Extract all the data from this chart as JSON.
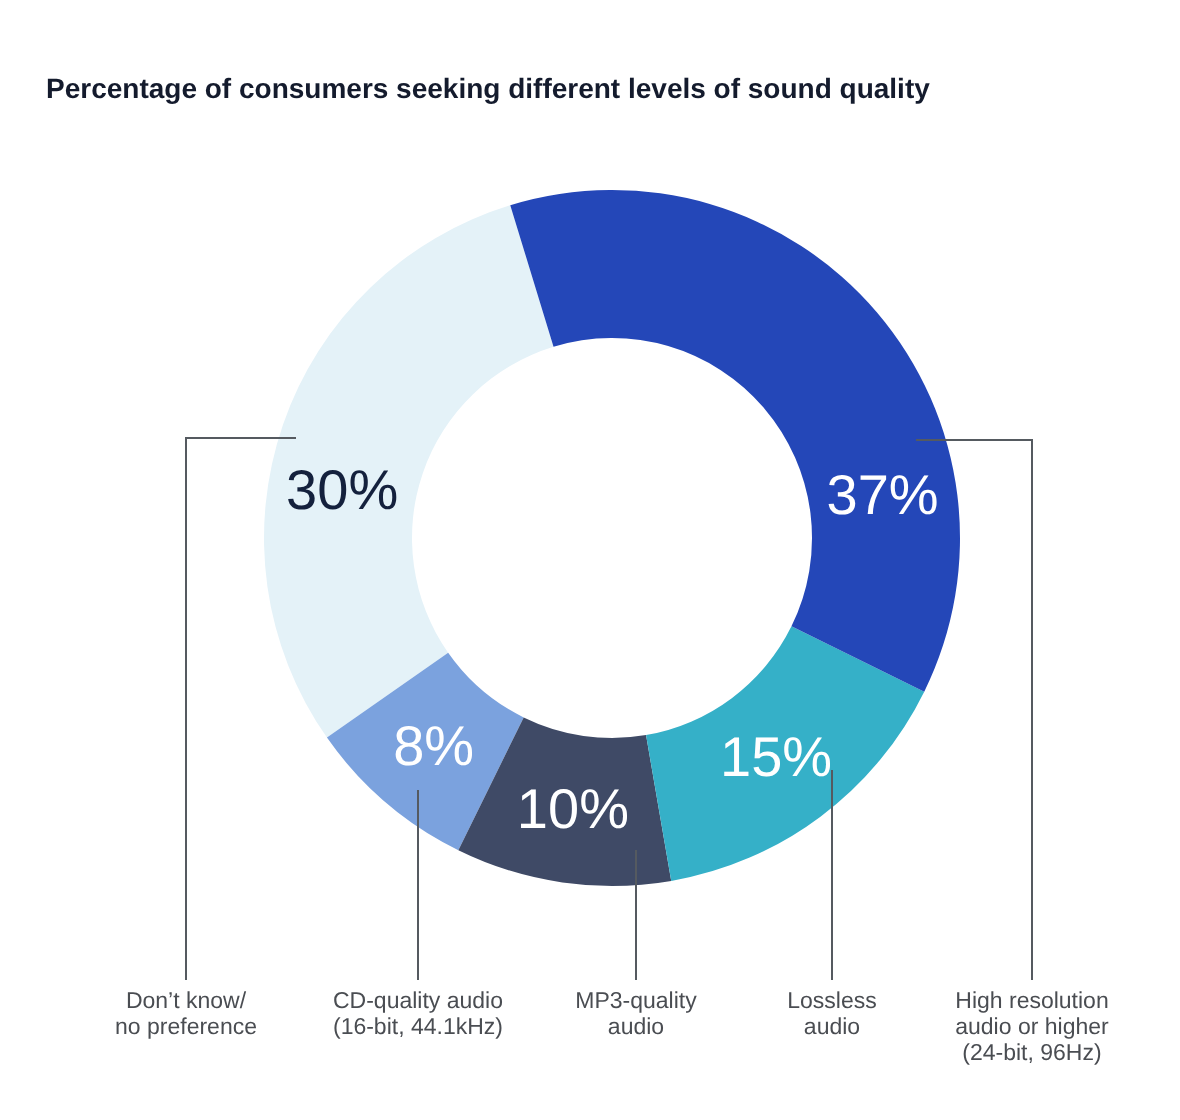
{
  "chart_data": {
    "type": "donut",
    "title": "Percentage of consumers seeking different levels of sound quality",
    "categories": [
      "Don’t know/ no preference",
      "CD-quality audio (16-bit, 44.1kHz)",
      "MP3-quality audio",
      "Lossless audio",
      "High resolution audio or higher (24-bit, 96Hz)"
    ],
    "values": [
      30,
      8,
      10,
      15,
      37
    ],
    "colors": [
      "#e4f2f8",
      "#7ba2de",
      "#3f4a66",
      "#35b0c8",
      "#2447b8"
    ],
    "value_labels": [
      "30%",
      "8%",
      "10%",
      "15%",
      "37%"
    ]
  }
}
